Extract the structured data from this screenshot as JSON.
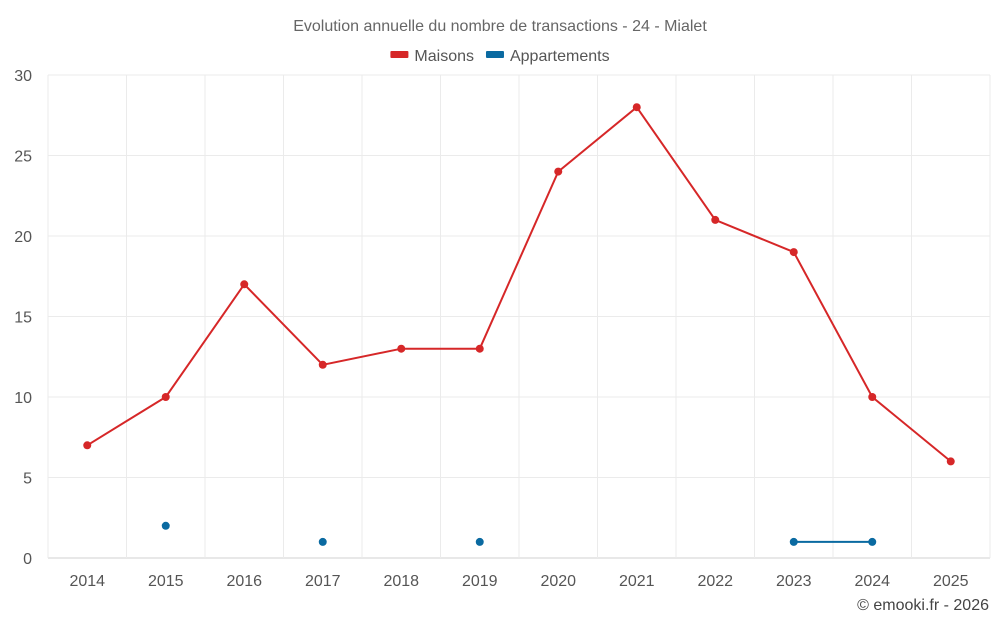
{
  "chart_data": {
    "type": "line",
    "title": "Evolution annuelle du nombre de transactions - 24 - Mialet",
    "categories": [
      "2014",
      "2015",
      "2016",
      "2017",
      "2018",
      "2019",
      "2020",
      "2021",
      "2022",
      "2023",
      "2024",
      "2025"
    ],
    "yticks": [
      "0",
      "5",
      "10",
      "15",
      "20",
      "25",
      "30"
    ],
    "ylim": [
      0,
      30
    ],
    "grid": true,
    "legend_position": "top-center",
    "series": [
      {
        "name": "Maisons",
        "color": "#d62728",
        "values": [
          7,
          10,
          17,
          12,
          13,
          13,
          24,
          28,
          21,
          19,
          10,
          6
        ]
      },
      {
        "name": "Appartements",
        "color": "#0a6aa1",
        "values": [
          null,
          2,
          null,
          1,
          null,
          1,
          null,
          null,
          null,
          1,
          1,
          null
        ]
      }
    ]
  },
  "credit": "© emooki.fr - 2026"
}
